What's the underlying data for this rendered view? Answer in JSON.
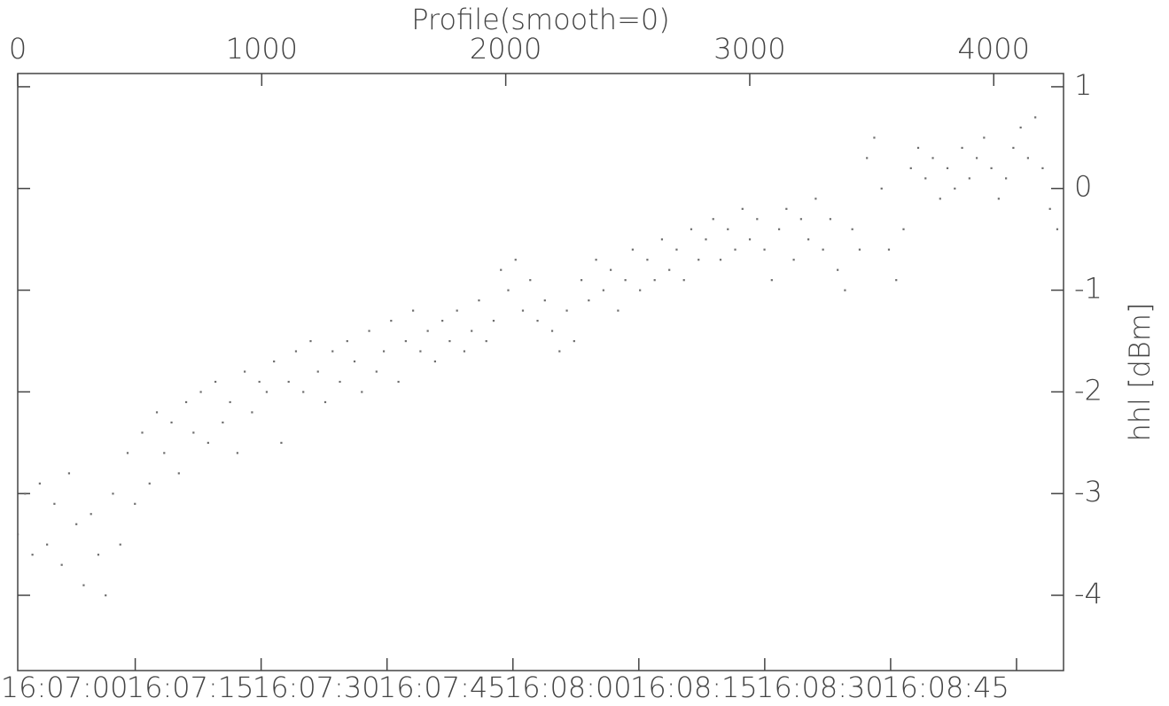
{
  "chart_data": {
    "type": "scatter",
    "title": "Profile(smooth=0)",
    "y_label": "hhl [dBm]",
    "color": "#6e6e6e",
    "xlim": [
      0,
      4286
    ],
    "xticks": [
      0,
      1000,
      2000,
      3000,
      4000
    ],
    "x2lim": [
      58006,
      58130.6
    ],
    "x2ticks": [
      {
        "value": 58020,
        "label": "16:07:00"
      },
      {
        "value": 58035,
        "label": "16:07:15"
      },
      {
        "value": 58050,
        "label": "16:07:30"
      },
      {
        "value": 58065,
        "label": "16:07:45"
      },
      {
        "value": 58080,
        "label": "16:08:00"
      },
      {
        "value": 58095,
        "label": "16:08:15"
      },
      {
        "value": 58110,
        "label": "16:08:30"
      },
      {
        "value": 58125,
        "label": "16:08:45"
      }
    ],
    "ylim": [
      -4.74,
      1.13
    ],
    "yticks": [
      -4,
      -3,
      -2,
      -1,
      0,
      1
    ],
    "x": [
      0,
      30,
      60,
      90,
      120,
      150,
      180,
      210,
      240,
      270,
      300,
      330,
      360,
      390,
      420,
      450,
      480,
      510,
      540,
      570,
      600,
      630,
      660,
      690,
      720,
      750,
      780,
      810,
      840,
      870,
      900,
      930,
      960,
      990,
      1020,
      1050,
      1080,
      1110,
      1140,
      1170,
      1200,
      1230,
      1260,
      1290,
      1320,
      1350,
      1380,
      1410,
      1440,
      1470,
      1500,
      1530,
      1560,
      1590,
      1620,
      1650,
      1680,
      1710,
      1740,
      1770,
      1800,
      1830,
      1860,
      1890,
      1920,
      1950,
      1980,
      2010,
      2040,
      2070,
      2100,
      2130,
      2160,
      2190,
      2220,
      2250,
      2280,
      2310,
      2340,
      2370,
      2400,
      2430,
      2460,
      2490,
      2520,
      2550,
      2580,
      2610,
      2640,
      2670,
      2700,
      2730,
      2760,
      2790,
      2820,
      2850,
      2880,
      2910,
      2940,
      2970,
      3000,
      3030,
      3060,
      3090,
      3120,
      3150,
      3180,
      3210,
      3240,
      3270,
      3300,
      3330,
      3360,
      3390,
      3420,
      3450,
      3480,
      3510,
      3540,
      3570,
      3600,
      3630,
      3660,
      3690,
      3720,
      3750,
      3780,
      3810,
      3840,
      3870,
      3900,
      3930,
      3960,
      3990,
      4020,
      4050,
      4080,
      4110,
      4140,
      4170,
      4200,
      4230,
      4260
    ],
    "values": [
      -3.4,
      -3.0,
      -3.6,
      -2.9,
      -3.5,
      -3.1,
      -3.7,
      -2.8,
      -3.3,
      -3.9,
      -3.2,
      -3.6,
      -4.0,
      -3.0,
      -3.5,
      -2.6,
      -3.1,
      -2.4,
      -2.9,
      -2.2,
      -2.6,
      -2.3,
      -2.8,
      -2.1,
      -2.4,
      -2.0,
      -2.5,
      -1.9,
      -2.3,
      -2.1,
      -2.6,
      -1.8,
      -2.2,
      -1.9,
      -2.0,
      -1.7,
      -2.5,
      -1.9,
      -1.6,
      -2.0,
      -1.5,
      -1.8,
      -2.1,
      -1.6,
      -1.9,
      -1.5,
      -1.7,
      -2.0,
      -1.4,
      -1.8,
      -1.6,
      -1.3,
      -1.9,
      -1.5,
      -1.2,
      -1.6,
      -1.4,
      -1.7,
      -1.3,
      -1.5,
      -1.2,
      -1.6,
      -1.4,
      -1.1,
      -1.5,
      -1.3,
      -0.8,
      -1.0,
      -0.7,
      -1.2,
      -0.9,
      -1.3,
      -1.1,
      -1.4,
      -1.6,
      -1.2,
      -1.5,
      -0.9,
      -1.1,
      -0.7,
      -1.0,
      -0.8,
      -1.2,
      -0.9,
      -0.6,
      -1.0,
      -0.7,
      -0.9,
      -0.5,
      -0.8,
      -0.6,
      -0.9,
      -0.4,
      -0.7,
      -0.5,
      -0.3,
      -0.7,
      -0.4,
      -0.6,
      -0.2,
      -0.5,
      -0.3,
      -0.6,
      -0.9,
      -0.4,
      -0.2,
      -0.7,
      -0.3,
      -0.5,
      -0.1,
      -0.6,
      -0.3,
      -0.8,
      -1.0,
      -0.4,
      -0.6,
      0.3,
      0.5,
      0.0,
      -0.6,
      -0.9,
      -0.4,
      0.2,
      0.4,
      0.1,
      0.3,
      -0.1,
      0.2,
      0.0,
      0.4,
      0.1,
      0.3,
      0.5,
      0.2,
      -0.1,
      0.1,
      0.4,
      0.6,
      0.3,
      0.7,
      0.2,
      -0.2,
      -0.4
    ]
  }
}
